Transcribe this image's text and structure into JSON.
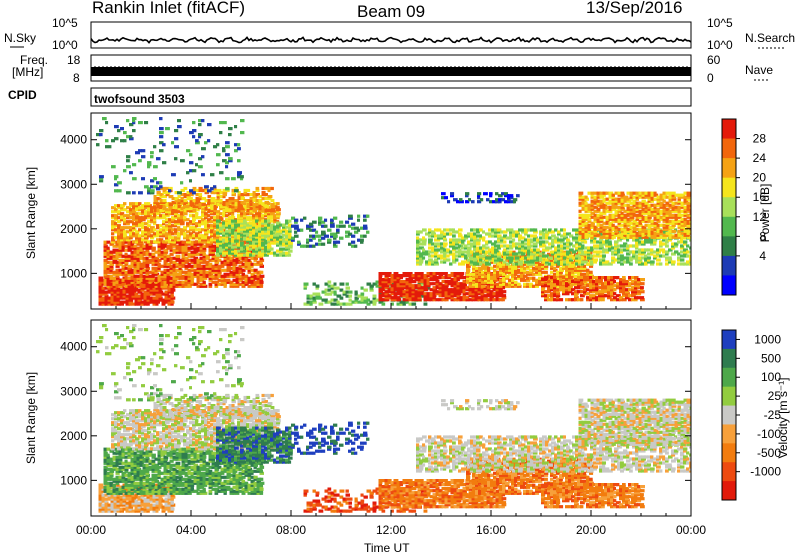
{
  "header": {
    "station": "Rankin Inlet (fitACF)",
    "beam": "Beam 09",
    "date": "13/Sep/2016"
  },
  "strips": {
    "nsky": {
      "label": "N.Sky",
      "left_ticks": [
        "10^5",
        "10^0"
      ],
      "right_ticks": [
        "10^5",
        "10^0"
      ],
      "right_label": "N.Search",
      "color": "#000000"
    },
    "freq": {
      "label_line1": "Freq.",
      "label_line2": "[MHz]",
      "left_ticks": [
        "18",
        "8"
      ],
      "right_ticks": [
        "60",
        "0"
      ],
      "right_label": "Nave"
    },
    "cpid": {
      "label": "CPID",
      "text": "twofsound 3503"
    }
  },
  "colors": {
    "power_scale": [
      "#0000ff",
      "#1d3bb5",
      "#2f7f47",
      "#52b84e",
      "#a8e05a",
      "#f5e51d",
      "#f5a214",
      "#f2660c",
      "#e41a0a"
    ],
    "velocity_scale": [
      "#1e3fbf",
      "#2f7c4f",
      "#4ea84a",
      "#92cc3f",
      "#c9c9c6",
      "#f7a03a",
      "#f27c0e",
      "#ee4a0f",
      "#e21a0a"
    ]
  },
  "chart_data": [
    {
      "type": "heatmap",
      "name": "power",
      "xlabel": "",
      "ylabel": "Slant Range [km]",
      "yticks": [
        1000,
        2000,
        3000,
        4000
      ],
      "ylim": [
        200,
        4600
      ],
      "xlim": [
        "00:00",
        "24:00"
      ],
      "colorbar_label": "Power [dB]",
      "colorbar_ticks": [
        "4",
        "8",
        "12",
        "16",
        "20",
        "24",
        "28"
      ],
      "colorbar_range": [
        0,
        32
      ]
    },
    {
      "type": "heatmap",
      "name": "velocity",
      "xlabel": "Time UT",
      "ylabel": "Slant Range [km]",
      "yticks": [
        1000,
        2000,
        3000,
        4000
      ],
      "ylim": [
        200,
        4600
      ],
      "xticks": [
        "00:00",
        "04:00",
        "08:00",
        "12:00",
        "16:00",
        "20:00",
        "00:00"
      ],
      "xlim": [
        "00:00",
        "24:00"
      ],
      "colorbar_label": "Velocity [m s⁻¹]",
      "colorbar_ticks": [
        "1000",
        "500",
        "100",
        "25",
        "-25",
        "-100",
        "-500",
        "-1000"
      ]
    }
  ]
}
